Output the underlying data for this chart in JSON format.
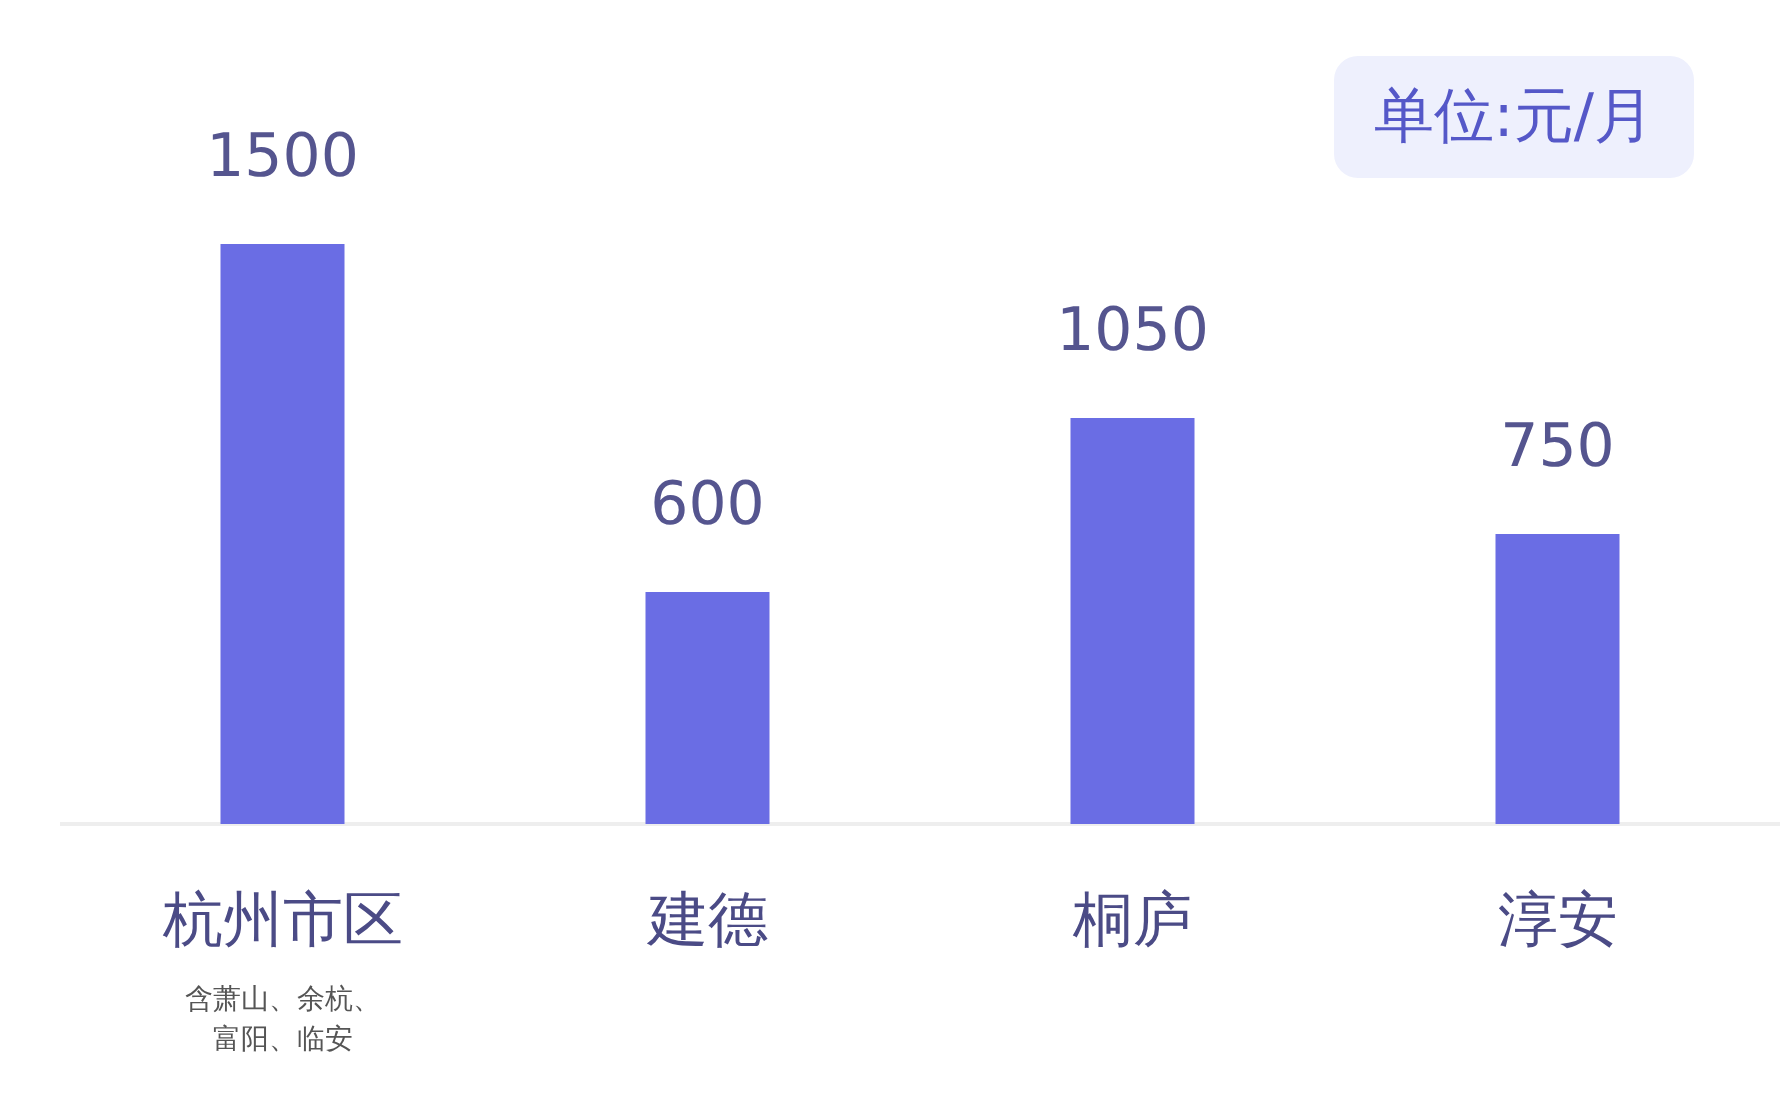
{
  "chart_data": {
    "type": "bar",
    "subtitle": "单位:元/月",
    "categories": [
      "杭州市区",
      "建德",
      "桐庐",
      "淳安"
    ],
    "values": [
      1500,
      600,
      1050,
      750
    ],
    "color": "#6a6de4",
    "data_labels": true,
    "annotations": [
      "含萧山、余杭、富阳、临安"
    ]
  }
}
